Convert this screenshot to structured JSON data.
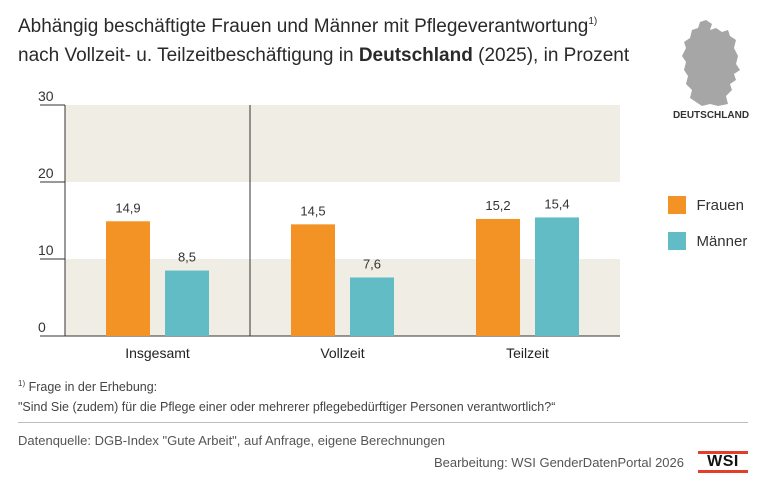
{
  "header": {
    "title_line1": "Abhängig beschäftigte Frauen und Männer mit Pflegeverantwortung",
    "title_sup": "1)",
    "title_line2_pre": "nach Vollzeit- u. Teilzeitbeschäftigung in ",
    "title_line2_bold": "Deutschland",
    "title_line2_post": " (2025), in Prozent"
  },
  "map": {
    "label": "DEUTSCHLAND",
    "fill": "#a6a6a6"
  },
  "colors": {
    "frauen": "#f39325",
    "maenner": "#62bcc6",
    "band": "#efede4",
    "axis": "#333333"
  },
  "chart_data": {
    "type": "bar",
    "categories": [
      "Insgesamt",
      "Vollzeit",
      "Teilzeit"
    ],
    "series": [
      {
        "name": "Frauen",
        "values": [
          14.9,
          14.5,
          15.2
        ],
        "labels": [
          "14,9",
          "14,5",
          "15,2"
        ]
      },
      {
        "name": "Männer",
        "values": [
          8.5,
          7.6,
          15.4
        ],
        "labels": [
          "8,5",
          "7,6",
          "15,4"
        ]
      }
    ],
    "yticks": [
      "0",
      "10",
      "20",
      "30"
    ],
    "ylim": [
      0,
      30
    ],
    "legend_position": "right",
    "grid": "alternating bands"
  },
  "footnote": {
    "marker": "1)",
    "line1": " Frage in der Erhebung:",
    "line2": "\"Sind Sie (zudem) für die Pflege einer oder mehrerer pflegebedürftiger Personen verantwortlich?“"
  },
  "footer": {
    "source": "Datenquelle: DGB-Index \"Gute Arbeit\", auf Anfrage, eigene Berechnungen",
    "editor": "Bearbeitung: WSI GenderDatenPortal 2026",
    "logo": "WSI"
  }
}
